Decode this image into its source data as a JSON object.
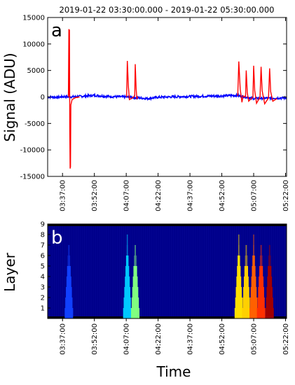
{
  "chart_data": [
    {
      "type": "line",
      "panel_label": "a",
      "title": "2019-01-22 03:30:00.000 - 2019-01-22 05:30:00.000",
      "ylabel": "Signal (ADU)",
      "xlabel": "",
      "ylim": [
        -15000,
        15000
      ],
      "xlim": [
        "03:30:00",
        "05:22:30"
      ],
      "yticks": [
        -15000,
        -10000,
        -5000,
        0,
        5000,
        10000,
        15000
      ],
      "xtick_labels": [
        "03:37:00",
        "03:52:00",
        "04:07:00",
        "04:22:00",
        "04:37:00",
        "04:52:00",
        "05:07:00",
        "05:22:00"
      ],
      "grid": false,
      "series": [
        {
          "color": "#0000ff",
          "description_points": [
            {
              "x": "03:30:00",
              "y": 0
            },
            {
              "x": "03:35:00",
              "y": -50
            },
            {
              "x": "03:38:30",
              "y": 100
            },
            {
              "x": "03:40:00",
              "y": 0
            },
            {
              "x": "03:45:00",
              "y": 100
            },
            {
              "x": "03:52:00",
              "y": 300
            },
            {
              "x": "03:58:00",
              "y": 100
            },
            {
              "x": "04:07:00",
              "y": 0
            },
            {
              "x": "04:17:00",
              "y": -300
            },
            {
              "x": "04:22:00",
              "y": -50
            },
            {
              "x": "04:37:00",
              "y": 100
            },
            {
              "x": "04:52:00",
              "y": 200
            },
            {
              "x": "04:59:00",
              "y": 300
            },
            {
              "x": "05:07:00",
              "y": -300
            },
            {
              "x": "05:15:00",
              "y": -200
            },
            {
              "x": "05:22:00",
              "y": -200
            }
          ]
        },
        {
          "color": "#ff0000",
          "points": [
            {
              "x": "03:39:45",
              "y": 0
            },
            {
              "x": "03:40:00",
              "y": 12800
            },
            {
              "x": "03:40:10",
              "y": 300
            },
            {
              "x": "03:40:15",
              "y": 12700
            },
            {
              "x": "03:40:25",
              "y": -5800
            },
            {
              "x": "03:40:35",
              "y": -13500
            },
            {
              "x": "03:40:45",
              "y": -13200
            },
            {
              "x": "03:40:55",
              "y": -1500
            },
            {
              "x": "03:41:30",
              "y": -500
            },
            {
              "x": "03:43:00",
              "y": -150
            },
            {
              "x": "03:45:00",
              "y": 0
            },
            {
              "x": "04:07:10",
              "y": 0
            },
            {
              "x": "04:07:30",
              "y": 6800
            },
            {
              "x": "04:08:00",
              "y": 2000
            },
            {
              "x": "04:08:30",
              "y": -500
            },
            {
              "x": "04:10:30",
              "y": 0
            },
            {
              "x": "04:11:00",
              "y": 300
            },
            {
              "x": "04:11:15",
              "y": 6200
            },
            {
              "x": "04:11:40",
              "y": 1500
            },
            {
              "x": "04:12:00",
              "y": -300
            },
            {
              "x": "04:12:30",
              "y": 0
            },
            {
              "x": "04:59:30",
              "y": 200
            },
            {
              "x": "05:00:00",
              "y": 6700
            },
            {
              "x": "05:00:40",
              "y": 1500
            },
            {
              "x": "05:01:30",
              "y": -1000
            },
            {
              "x": "05:02:00",
              "y": 200
            },
            {
              "x": "05:03:10",
              "y": 0
            },
            {
              "x": "05:03:30",
              "y": 5000
            },
            {
              "x": "05:04:00",
              "y": 800
            },
            {
              "x": "05:04:40",
              "y": -800
            },
            {
              "x": "05:06:40",
              "y": 0
            },
            {
              "x": "05:07:00",
              "y": 5900
            },
            {
              "x": "05:07:30",
              "y": 1200
            },
            {
              "x": "05:08:20",
              "y": -1200
            },
            {
              "x": "05:10:00",
              "y": 0
            },
            {
              "x": "05:10:30",
              "y": 5700
            },
            {
              "x": "05:11:00",
              "y": 1200
            },
            {
              "x": "05:12:10",
              "y": -1300
            },
            {
              "x": "05:14:00",
              "y": -200
            },
            {
              "x": "05:14:30",
              "y": 5400
            },
            {
              "x": "05:15:00",
              "y": 1000
            },
            {
              "x": "05:16:00",
              "y": -800
            },
            {
              "x": "05:18:00",
              "y": -300
            }
          ]
        }
      ]
    },
    {
      "type": "heatmap",
      "panel_label": "b",
      "title": "",
      "ylabel": "Layer",
      "xlabel": "Time",
      "ylim": [
        0,
        9
      ],
      "xlim": [
        "03:30:00",
        "05:22:30"
      ],
      "yticks": [
        1,
        2,
        3,
        4,
        5,
        6,
        7,
        8,
        9
      ],
      "xtick_labels": [
        "03:37:00",
        "03:52:00",
        "04:07:00",
        "04:22:00",
        "04:37:00",
        "04:52:00",
        "05:07:00",
        "05:22:00"
      ],
      "background_color": "#00008b",
      "events": [
        {
          "time": "03:40:00",
          "max_layer": 7,
          "color": "#1040ff"
        },
        {
          "time": "04:07:30",
          "max_layer": 8,
          "color": "#00c8ff"
        },
        {
          "time": "04:11:15",
          "max_layer": 7,
          "color": "#80ff80"
        },
        {
          "time": "05:00:00",
          "max_layer": 8,
          "color": "#ffe000"
        },
        {
          "time": "05:03:30",
          "max_layer": 7,
          "color": "#ffd000"
        },
        {
          "time": "05:07:00",
          "max_layer": 8,
          "color": "#ff6000"
        },
        {
          "time": "05:10:30",
          "max_layer": 7,
          "color": "#ff3000"
        },
        {
          "time": "05:14:30",
          "max_layer": 7,
          "color": "#a00000"
        }
      ]
    }
  ]
}
